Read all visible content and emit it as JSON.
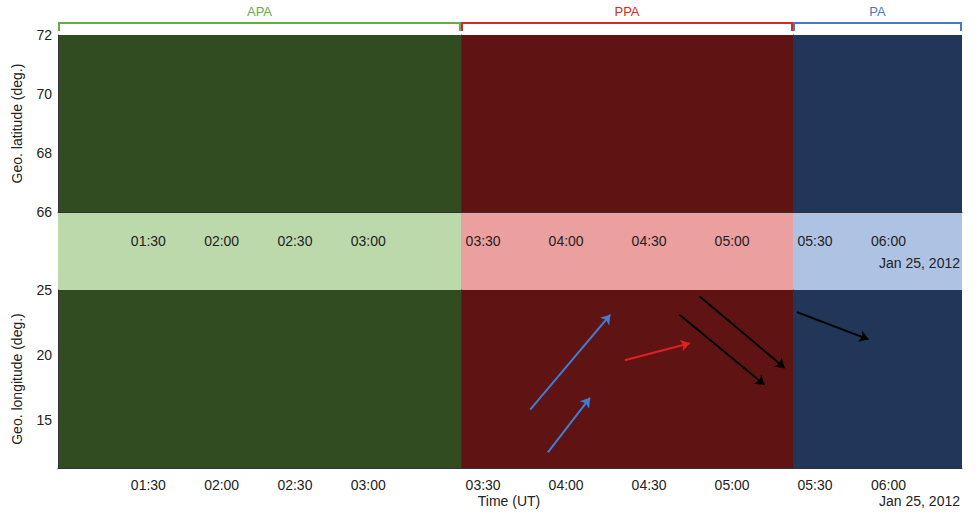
{
  "chart_data": {
    "type": "keogram",
    "x_label": "Time (UT)",
    "date_label": "Jan 25, 2012",
    "panels": [
      {
        "y_label": "Geo. latitude (deg.)",
        "ylim": [
          66,
          72
        ],
        "yticks": [
          66,
          68,
          70,
          72
        ]
      },
      {
        "y_label": "Geo. longitude (deg.)",
        "ylim": [
          11.3,
          25
        ],
        "yticks": [
          15,
          20,
          25
        ]
      }
    ],
    "segments": [
      {
        "label": "APA",
        "color": "#6aaa46",
        "xlim": [
          53,
          218
        ],
        "xticks": [
          {
            "value": 90,
            "label": "01:30"
          },
          {
            "value": 120,
            "label": "02:00"
          },
          {
            "value": 150,
            "label": "02:30"
          },
          {
            "value": 180,
            "label": "03:00"
          }
        ],
        "arrows": []
      },
      {
        "label": "PPA",
        "color": "#d42a2a",
        "xlim": [
          202,
          322
        ],
        "xticks": [
          {
            "value": 210,
            "label": "03:30"
          },
          {
            "value": 240,
            "label": "04:00"
          },
          {
            "value": 270,
            "label": "04:30"
          },
          {
            "value": 300,
            "label": "05:00"
          }
        ],
        "arrows": [
          {
            "color": "#3c7fd8",
            "start": [
              227,
              15.8
            ],
            "end": [
              256,
              23.1
            ]
          },
          {
            "color": "#3c7fd8",
            "start": [
              233.4,
              12.5
            ],
            "end": [
              248.6,
              16.7
            ]
          },
          {
            "color": "#e02020",
            "start": [
              261.2,
              19.6
            ],
            "end": [
              284.7,
              20.9
            ]
          },
          {
            "color": "#000000",
            "start": [
              288.3,
              24.5
            ],
            "end": [
              319,
              19.0
            ]
          },
          {
            "color": "#000000",
            "start": [
              281,
              23.1
            ],
            "end": [
              311.7,
              17.7
            ]
          }
        ]
      },
      {
        "label": "PA",
        "color": "#4a78c4",
        "xlim": [
          321,
          390
        ],
        "xticks": [
          {
            "value": 330,
            "label": "05:30"
          },
          {
            "value": 360,
            "label": "06:00"
          }
        ],
        "arrows": [
          {
            "color": "#000000",
            "start": [
              322.6,
              23.3
            ],
            "end": [
              351.8,
              21.2
            ]
          }
        ]
      }
    ]
  }
}
